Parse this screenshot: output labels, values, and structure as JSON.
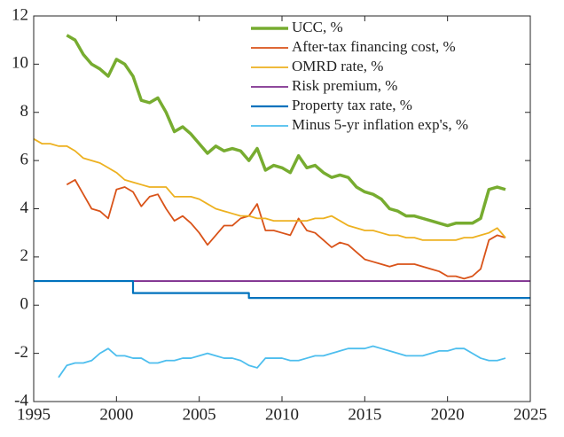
{
  "chart_data": {
    "type": "line",
    "xlim": [
      1995,
      2025
    ],
    "xticks": [
      1995,
      2000,
      2005,
      2010,
      2015,
      2020,
      2025
    ],
    "ylim": [
      -4,
      12
    ],
    "yticks": [
      -4,
      -2,
      0,
      2,
      4,
      6,
      8,
      10,
      12
    ],
    "legend": "upper right",
    "grid": false,
    "series": [
      {
        "name": "UCC, %",
        "color": "#77ac30",
        "width": 3.5,
        "x": [
          1997,
          1997.5,
          1998,
          1998.5,
          1999,
          1999.5,
          2000,
          2000.5,
          2001,
          2001.5,
          2002,
          2002.5,
          2003,
          2003.5,
          2004,
          2004.5,
          2005,
          2005.5,
          2006,
          2006.5,
          2007,
          2007.5,
          2008,
          2008.5,
          2009,
          2009.5,
          2010,
          2010.5,
          2011,
          2011.5,
          2012,
          2012.5,
          2013,
          2013.5,
          2014,
          2014.5,
          2015,
          2015.5,
          2016,
          2016.5,
          2017,
          2017.5,
          2018,
          2018.5,
          2019,
          2019.5,
          2020,
          2020.5,
          2021,
          2021.5,
          2022,
          2022.5,
          2023,
          2023.5
        ],
        "values": [
          11.2,
          11.0,
          10.4,
          10.0,
          9.8,
          9.5,
          10.2,
          10.0,
          9.5,
          8.5,
          8.4,
          8.6,
          8.0,
          7.2,
          7.4,
          7.1,
          6.7,
          6.3,
          6.6,
          6.4,
          6.5,
          6.4,
          6.0,
          6.5,
          5.6,
          5.8,
          5.7,
          5.5,
          6.2,
          5.7,
          5.8,
          5.5,
          5.3,
          5.4,
          5.3,
          4.9,
          4.7,
          4.6,
          4.4,
          4.0,
          3.9,
          3.7,
          3.7,
          3.6,
          3.5,
          3.4,
          3.3,
          3.4,
          3.4,
          3.4,
          3.6,
          4.8,
          4.9,
          4.8
        ]
      },
      {
        "name": "After-tax financing cost, %",
        "color": "#d95319",
        "width": 1.8,
        "x": [
          1997,
          1997.5,
          1998,
          1998.5,
          1999,
          1999.5,
          2000,
          2000.5,
          2001,
          2001.5,
          2002,
          2002.5,
          2003,
          2003.5,
          2004,
          2004.5,
          2005,
          2005.5,
          2006,
          2006.5,
          2007,
          2007.5,
          2008,
          2008.5,
          2009,
          2009.5,
          2010,
          2010.5,
          2011,
          2011.5,
          2012,
          2012.5,
          2013,
          2013.5,
          2014,
          2014.5,
          2015,
          2015.5,
          2016,
          2016.5,
          2017,
          2017.5,
          2018,
          2018.5,
          2019,
          2019.5,
          2020,
          2020.5,
          2021,
          2021.5,
          2022,
          2022.5,
          2023,
          2023.5
        ],
        "values": [
          5.0,
          5.2,
          4.6,
          4.0,
          3.9,
          3.6,
          4.8,
          4.9,
          4.7,
          4.1,
          4.5,
          4.6,
          4.0,
          3.5,
          3.7,
          3.4,
          3.0,
          2.5,
          2.9,
          3.3,
          3.3,
          3.6,
          3.7,
          4.2,
          3.1,
          3.1,
          3.0,
          2.9,
          3.6,
          3.1,
          3.0,
          2.7,
          2.4,
          2.6,
          2.5,
          2.2,
          1.9,
          1.8,
          1.7,
          1.6,
          1.7,
          1.7,
          1.7,
          1.6,
          1.5,
          1.4,
          1.2,
          1.2,
          1.1,
          1.2,
          1.5,
          2.7,
          2.9,
          2.8
        ]
      },
      {
        "name": "OMRD rate, %",
        "color": "#edb120",
        "width": 1.8,
        "x": [
          1995,
          1995.5,
          1996,
          1996.5,
          1997,
          1997.5,
          1998,
          1998.5,
          1999,
          1999.5,
          2000,
          2000.5,
          2001,
          2001.5,
          2002,
          2002.5,
          2003,
          2003.5,
          2004,
          2004.5,
          2005,
          2005.5,
          2006,
          2006.5,
          2007,
          2007.5,
          2008,
          2008.5,
          2009,
          2009.5,
          2010,
          2010.5,
          2011,
          2011.5,
          2012,
          2012.5,
          2013,
          2013.5,
          2014,
          2014.5,
          2015,
          2015.5,
          2016,
          2016.5,
          2017,
          2017.5,
          2018,
          2018.5,
          2019,
          2019.5,
          2020,
          2020.5,
          2021,
          2021.5,
          2022,
          2022.5,
          2023,
          2023.5
        ],
        "values": [
          6.9,
          6.7,
          6.7,
          6.6,
          6.6,
          6.4,
          6.1,
          6.0,
          5.9,
          5.7,
          5.5,
          5.2,
          5.1,
          5.0,
          4.9,
          4.9,
          4.9,
          4.5,
          4.5,
          4.5,
          4.4,
          4.2,
          4.0,
          3.9,
          3.8,
          3.7,
          3.7,
          3.6,
          3.6,
          3.5,
          3.5,
          3.5,
          3.5,
          3.5,
          3.6,
          3.6,
          3.7,
          3.5,
          3.3,
          3.2,
          3.1,
          3.1,
          3.0,
          2.9,
          2.9,
          2.8,
          2.8,
          2.7,
          2.7,
          2.7,
          2.7,
          2.7,
          2.8,
          2.8,
          2.9,
          3.0,
          3.2,
          2.8
        ]
      },
      {
        "name": "Risk premium, %",
        "color": "#7e2f8e",
        "width": 1.8,
        "x": [
          1995,
          2025
        ],
        "values": [
          1,
          1
        ]
      },
      {
        "name": "Property tax rate, %",
        "color": "#0072bd",
        "width": 2.2,
        "x": [
          1995,
          2001,
          2001,
          2008,
          2008,
          2025
        ],
        "values": [
          1,
          1,
          0.5,
          0.5,
          0.3,
          0.3
        ]
      },
      {
        "name": "Minus 5-yr inflation exp's, %",
        "color": "#4dbeee",
        "width": 1.8,
        "x": [
          1996.5,
          1997,
          1997.5,
          1998,
          1998.5,
          1999,
          1999.5,
          2000,
          2000.5,
          2001,
          2001.5,
          2002,
          2002.5,
          2003,
          2003.5,
          2004,
          2004.5,
          2005,
          2005.5,
          2006,
          2006.5,
          2007,
          2007.5,
          2008,
          2008.5,
          2009,
          2009.5,
          2010,
          2010.5,
          2011,
          2011.5,
          2012,
          2012.5,
          2013,
          2013.5,
          2014,
          2014.5,
          2015,
          2015.5,
          2016,
          2016.5,
          2017,
          2017.5,
          2018,
          2018.5,
          2019,
          2019.5,
          2020,
          2020.5,
          2021,
          2021.5,
          2022,
          2022.5,
          2023,
          2023.5
        ],
        "values": [
          -3.0,
          -2.5,
          -2.4,
          -2.4,
          -2.3,
          -2.0,
          -1.8,
          -2.1,
          -2.1,
          -2.2,
          -2.2,
          -2.4,
          -2.4,
          -2.3,
          -2.3,
          -2.2,
          -2.2,
          -2.1,
          -2.0,
          -2.1,
          -2.2,
          -2.2,
          -2.3,
          -2.5,
          -2.6,
          -2.2,
          -2.2,
          -2.2,
          -2.3,
          -2.3,
          -2.2,
          -2.1,
          -2.1,
          -2.0,
          -1.9,
          -1.8,
          -1.8,
          -1.8,
          -1.7,
          -1.8,
          -1.9,
          -2.0,
          -2.1,
          -2.1,
          -2.1,
          -2.0,
          -1.9,
          -1.9,
          -1.8,
          -1.8,
          -2.0,
          -2.2,
          -2.3,
          -2.3,
          -2.2
        ]
      }
    ]
  }
}
